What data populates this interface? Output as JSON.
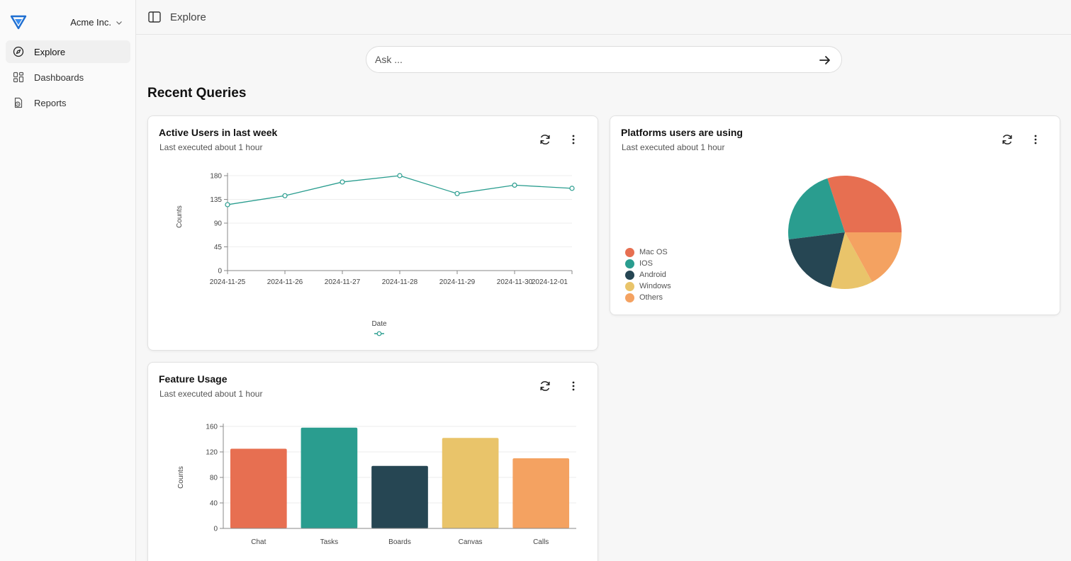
{
  "sidebar": {
    "org_name": "Acme Inc.",
    "items": [
      {
        "label": "Explore",
        "icon": "compass-icon"
      },
      {
        "label": "Dashboards",
        "icon": "dashboard-grid-icon"
      },
      {
        "label": "Reports",
        "icon": "report-icon"
      }
    ]
  },
  "header": {
    "breadcrumb": "Explore"
  },
  "ask": {
    "placeholder": "Ask ..."
  },
  "main": {
    "section_title": "Recent Queries"
  },
  "cards": [
    {
      "title": "Active Users in last week",
      "subtitle": "Last executed about 1 hour"
    },
    {
      "title": "Platforms users are using",
      "subtitle": "Last executed about 1 hour"
    },
    {
      "title": "Feature Usage",
      "subtitle": "Last executed about 1 hour"
    }
  ],
  "colors": {
    "accent": "#2a9d8f",
    "orange": "#e76f51",
    "teal": "#2a9d8f",
    "dark": "#264653",
    "yellow": "#e9c46a",
    "peach": "#f4a261"
  },
  "chart_data": [
    {
      "type": "line",
      "x": [
        "2024-11-25",
        "2024-11-26",
        "2024-11-27",
        "2024-11-28",
        "2024-11-29",
        "2024-11-30",
        "2024-12-01"
      ],
      "series": [
        {
          "values": [
            125,
            142,
            168,
            180,
            146,
            162,
            156
          ],
          "color": "#2a9d8f"
        }
      ],
      "xlabel": "Date",
      "ylabel": "Counts",
      "yticks": [
        0,
        45,
        90,
        135,
        180
      ],
      "ylim": [
        0,
        180
      ],
      "grid": true,
      "legend": "bottom"
    },
    {
      "type": "pie",
      "categories": [
        "Mac OS",
        "IOS",
        "Android",
        "Windows",
        "Others"
      ],
      "values": [
        30,
        22,
        19,
        12,
        17
      ],
      "colors": [
        "#e76f51",
        "#2a9d8f",
        "#264653",
        "#e9c46a",
        "#f4a261"
      ],
      "legend": "left"
    },
    {
      "type": "bar",
      "categories": [
        "Chat",
        "Tasks",
        "Boards",
        "Canvas",
        "Calls"
      ],
      "values": [
        125,
        158,
        98,
        142,
        110
      ],
      "colors": [
        "#e76f51",
        "#2a9d8f",
        "#264653",
        "#e9c46a",
        "#f4a261"
      ],
      "ylabel": "Counts",
      "yticks": [
        0,
        40,
        80,
        120,
        160
      ],
      "ylim": [
        0,
        160
      ],
      "grid": true
    }
  ]
}
